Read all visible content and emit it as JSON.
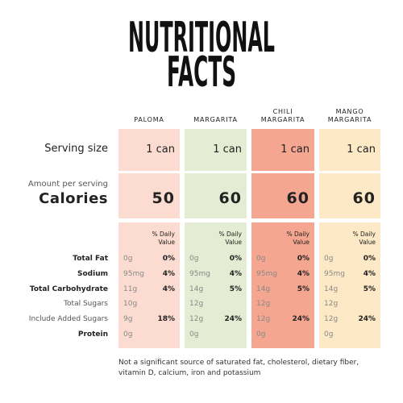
{
  "header": {
    "title_lines": [
      "NUTRITIONAL",
      "FACTS"
    ]
  },
  "columns": [
    "PALOMA",
    "MARGARITA",
    "CHILI MARGARITA",
    "MANGO MARGARITA"
  ],
  "serving_size": {
    "label": "Serving size",
    "values": [
      "1 can",
      "1 can",
      "1 can",
      "1 can"
    ]
  },
  "calories": {
    "note": "Amount per serving",
    "label": "Calories",
    "values": [
      50,
      60,
      60,
      60
    ]
  },
  "daily_value_header": "% Daily Value",
  "nutrients": [
    {
      "label": "Total Fat",
      "bold": true,
      "amounts": [
        "0g",
        "0g",
        "0g",
        "0g"
      ],
      "dv": [
        "0%",
        "0%",
        "0%",
        "0%"
      ]
    },
    {
      "label": "Sodium",
      "bold": true,
      "amounts": [
        "95mg",
        "95mg",
        "95mg",
        "95mg"
      ],
      "dv": [
        "4%",
        "4%",
        "4%",
        "4%"
      ]
    },
    {
      "label": "Total Carbohydrate",
      "bold": true,
      "amounts": [
        "11g",
        "14g",
        "14g",
        "14g"
      ],
      "dv": [
        "4%",
        "5%",
        "5%",
        "5%"
      ]
    },
    {
      "label": "Total Sugars",
      "bold": false,
      "amounts": [
        "10g",
        "12g",
        "12g",
        "12g"
      ],
      "dv": [
        null,
        null,
        null,
        null
      ]
    },
    {
      "label": "Include Added Sugars",
      "bold": false,
      "amounts": [
        "9g",
        "12g",
        "12g",
        "12g"
      ],
      "dv": [
        "18%",
        "24%",
        "24%",
        "24%"
      ]
    },
    {
      "label": "Protein",
      "bold": true,
      "amounts": [
        "0g",
        "0g",
        "0g",
        "0g"
      ],
      "dv": [
        null,
        null,
        null,
        null
      ]
    }
  ],
  "column_colors": [
    "#fcdcd0",
    "#e4edd3",
    "#f5a690",
    "#fde9c5"
  ],
  "footnote": "Not a significant source of saturated fat, cholesterol, dietary fiber, vitamin D, calcium, iron and potassium"
}
